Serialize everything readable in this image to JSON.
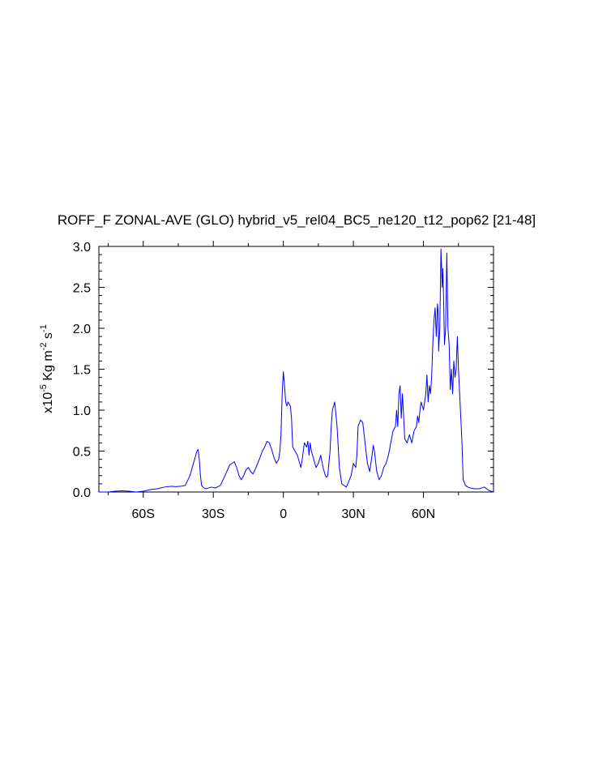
{
  "chart_data": {
    "type": "line",
    "title": "ROFF_F ZONAL-AVE (GLO) hybrid_v5_rel04_BC5_ne120_t12_pop62 [21-48]",
    "ylabel": {
      "prefix": "x10",
      "exp": "-5",
      "unit_a": " Kg m",
      "exp_a": "-2",
      "unit_b": " s",
      "exp_b": "-1"
    },
    "xlim": [
      -79,
      90
    ],
    "ylim": [
      0,
      3.0
    ],
    "x_ticks": [
      {
        "value": -60,
        "label": "60S"
      },
      {
        "value": -30,
        "label": "30S"
      },
      {
        "value": 0,
        "label": "0"
      },
      {
        "value": 30,
        "label": "30N"
      },
      {
        "value": 60,
        "label": "60N"
      }
    ],
    "y_ticks": [
      {
        "value": 0.0,
        "label": "0.0"
      },
      {
        "value": 0.5,
        "label": "0.5"
      },
      {
        "value": 1.0,
        "label": "1.0"
      },
      {
        "value": 1.5,
        "label": "1.5"
      },
      {
        "value": 2.0,
        "label": "2.0"
      },
      {
        "value": 2.5,
        "label": "2.5"
      },
      {
        "value": 3.0,
        "label": "3.0"
      }
    ],
    "line_color": "#0000ff",
    "series": [
      {
        "x": [
          -79,
          -75,
          -72,
          -69,
          -66,
          -63,
          -60,
          -57,
          -54,
          -51,
          -48,
          -46,
          -44,
          -42,
          -40,
          -39,
          -38,
          -37,
          -36.5,
          -36,
          -35.5,
          -35,
          -34,
          -33,
          -31,
          -29,
          -27,
          -25,
          -23,
          -21,
          -20,
          -19,
          -18,
          -17,
          -16,
          -15,
          -14,
          -13,
          -12,
          -11,
          -10,
          -9,
          -8,
          -7,
          -6,
          -5,
          -4,
          -3,
          -2,
          -1.5,
          -1,
          -0.5,
          0,
          0.5,
          1,
          1.5,
          2,
          3,
          3.5,
          4,
          5,
          6,
          7,
          7.5,
          8,
          9,
          10,
          10.5,
          11,
          11.5,
          12,
          13,
          14,
          15,
          16,
          17,
          18,
          18.5,
          19,
          20,
          20.5,
          21,
          22,
          23,
          24,
          25,
          27,
          29,
          30,
          31,
          31.5,
          32,
          33,
          34,
          35,
          36,
          37,
          38,
          38.5,
          39,
          40,
          41,
          42,
          43,
          44,
          45,
          46,
          47,
          48,
          48.5,
          49,
          49.5,
          50,
          50.5,
          51,
          52,
          53,
          54,
          55,
          56,
          57,
          57.5,
          58,
          58.5,
          59,
          60,
          61,
          61.5,
          62,
          62.5,
          63,
          63.5,
          64,
          64.5,
          65,
          65.5,
          66,
          66.3,
          66.5,
          67,
          67.5,
          68,
          68.3,
          68.6,
          69,
          69.5,
          70,
          70.5,
          71,
          71.5,
          72,
          72.5,
          73,
          73.5,
          74,
          74.5,
          75,
          75.5,
          76,
          76.5,
          77,
          78,
          79,
          80,
          82,
          84,
          86,
          88,
          90
        ],
        "y": [
          0.0,
          0.0,
          0.01,
          0.015,
          0.01,
          0.0,
          0.01,
          0.03,
          0.04,
          0.06,
          0.07,
          0.065,
          0.07,
          0.08,
          0.2,
          0.3,
          0.4,
          0.5,
          0.52,
          0.4,
          0.2,
          0.08,
          0.05,
          0.04,
          0.06,
          0.05,
          0.08,
          0.2,
          0.33,
          0.37,
          0.3,
          0.2,
          0.15,
          0.2,
          0.27,
          0.3,
          0.25,
          0.22,
          0.28,
          0.35,
          0.42,
          0.5,
          0.55,
          0.62,
          0.6,
          0.52,
          0.42,
          0.35,
          0.4,
          0.5,
          0.7,
          1.2,
          1.47,
          1.3,
          1.1,
          1.05,
          1.1,
          1.05,
          0.9,
          0.55,
          0.5,
          0.45,
          0.35,
          0.3,
          0.38,
          0.6,
          0.55,
          0.62,
          0.45,
          0.6,
          0.5,
          0.4,
          0.3,
          0.35,
          0.45,
          0.3,
          0.2,
          0.18,
          0.2,
          0.5,
          0.8,
          1.0,
          1.1,
          0.8,
          0.3,
          0.1,
          0.06,
          0.2,
          0.35,
          0.3,
          0.45,
          0.8,
          0.88,
          0.85,
          0.6,
          0.35,
          0.25,
          0.45,
          0.57,
          0.5,
          0.25,
          0.15,
          0.2,
          0.3,
          0.35,
          0.45,
          0.6,
          0.75,
          0.8,
          1.0,
          0.8,
          1.2,
          1.3,
          0.9,
          1.2,
          0.65,
          0.6,
          0.7,
          0.6,
          0.75,
          0.8,
          0.93,
          0.85,
          1.0,
          1.1,
          1.0,
          1.2,
          1.43,
          1.1,
          1.3,
          1.2,
          1.4,
          1.8,
          2.1,
          2.25,
          1.9,
          2.3,
          2.2,
          1.72,
          2.0,
          2.97,
          2.5,
          2.73,
          2.4,
          1.8,
          2.0,
          2.92,
          2.0,
          1.8,
          1.25,
          1.5,
          1.2,
          1.6,
          1.4,
          1.5,
          1.9,
          1.5,
          1.2,
          0.9,
          0.6,
          0.15,
          0.08,
          0.06,
          0.05,
          0.04,
          0.04,
          0.06,
          0.02,
          0.0
        ]
      }
    ]
  }
}
